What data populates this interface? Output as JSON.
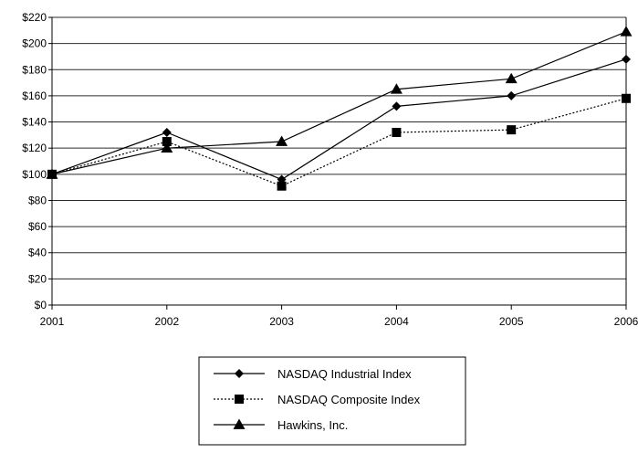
{
  "chart_data": {
    "type": "line",
    "x": [
      "2001",
      "2002",
      "2003",
      "2004",
      "2005",
      "2006"
    ],
    "ylim": [
      0,
      220
    ],
    "ytick_step": 20,
    "ytick_labels": [
      "$0",
      "$20",
      "$40",
      "$60",
      "$80",
      "$100",
      "$120",
      "$140",
      "$160",
      "$180",
      "$200",
      "$220"
    ],
    "grid": true,
    "legend_position": "bottom-center",
    "series": [
      {
        "name": "NASDAQ Industrial Index",
        "values": [
          100,
          132,
          96,
          152,
          160,
          188
        ],
        "marker": "diamond-icon",
        "line_style": "solid",
        "color": "#000000"
      },
      {
        "name": "NASDAQ Composite Index",
        "values": [
          100,
          125,
          91,
          132,
          134,
          158
        ],
        "marker": "square-icon",
        "line_style": "dotted",
        "color": "#000000"
      },
      {
        "name": "Hawkins, Inc.",
        "values": [
          100,
          120,
          125,
          165,
          173,
          209
        ],
        "marker": "triangle-icon",
        "line_style": "solid",
        "color": "#000000"
      }
    ]
  }
}
